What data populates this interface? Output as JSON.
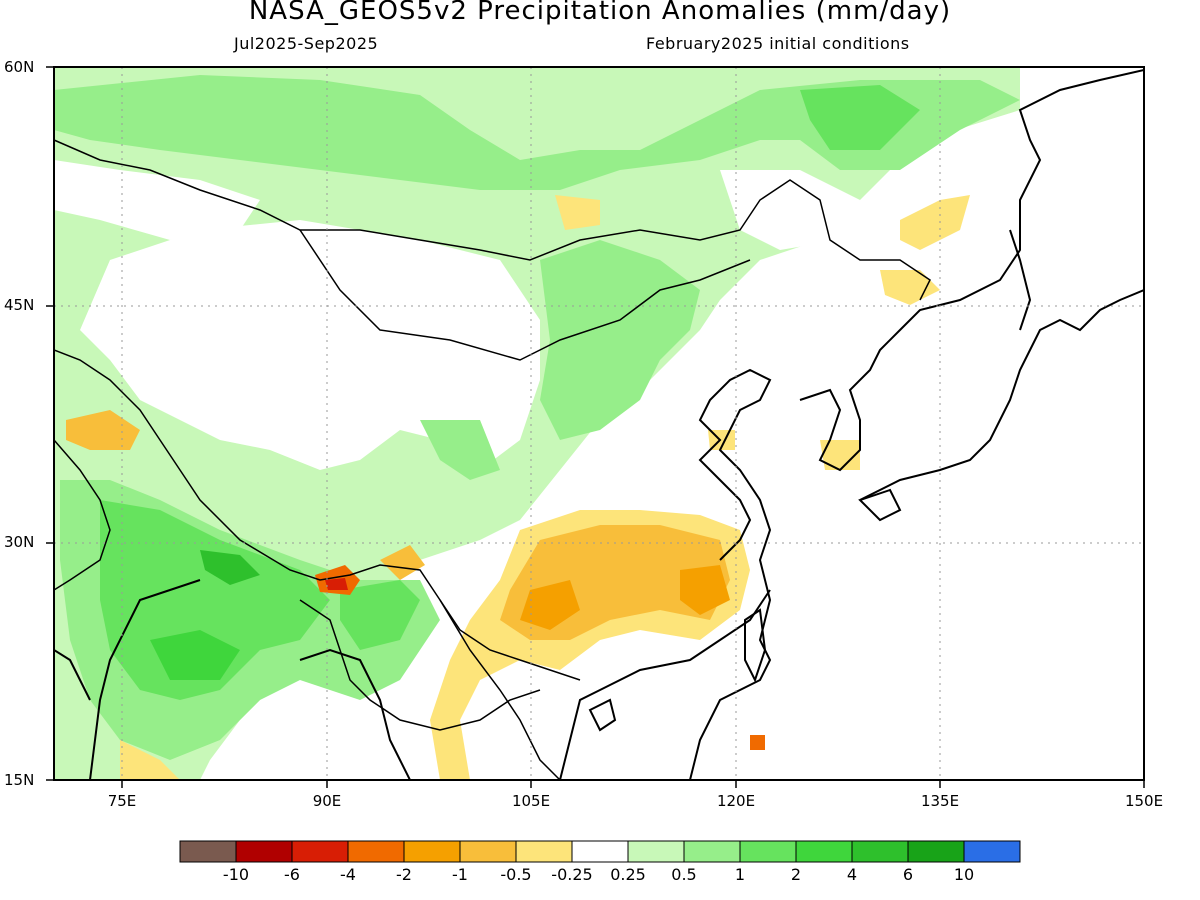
{
  "title": "NASA_GEOS5v2 Precipitation Anomalies (mm/day)",
  "subtitle_left": "Jul2025-Sep2025",
  "subtitle_right": "February2025 initial conditions",
  "lat_labels": [
    "60N",
    "45N",
    "30N",
    "15N"
  ],
  "lon_labels": [
    "75E",
    "90E",
    "105E",
    "120E",
    "135E",
    "150E"
  ],
  "colorbar": {
    "colors": [
      "#7a5a4f",
      "#b00000",
      "#d81e05",
      "#f06a00",
      "#f5a000",
      "#f8be3a",
      "#fde47a",
      "#ffffff",
      "#c8f8b8",
      "#96ee8a",
      "#66e35e",
      "#3fd63c",
      "#2ec02c",
      "#18a318",
      "#2a6ee6"
    ],
    "labels": [
      "-10",
      "-6",
      "-4",
      "-2",
      "-1",
      "-0.5",
      "-0.25",
      "0.25",
      "0.5",
      "1",
      "2",
      "4",
      "6",
      "10"
    ]
  },
  "map": {
    "lon_range": [
      70,
      150
    ],
    "lat_range": [
      15,
      60
    ],
    "wet_colors": {
      "w05": "#c8f8b8",
      "w1": "#96ee8a",
      "w2": "#66e35e",
      "w4": "#3fd63c",
      "w6": "#2ec02c"
    },
    "dry_colors": {
      "d025": "#fde47a",
      "d05": "#f8be3a",
      "d1": "#f5a000",
      "d2": "#f06a00",
      "d4": "#d81e05"
    }
  }
}
